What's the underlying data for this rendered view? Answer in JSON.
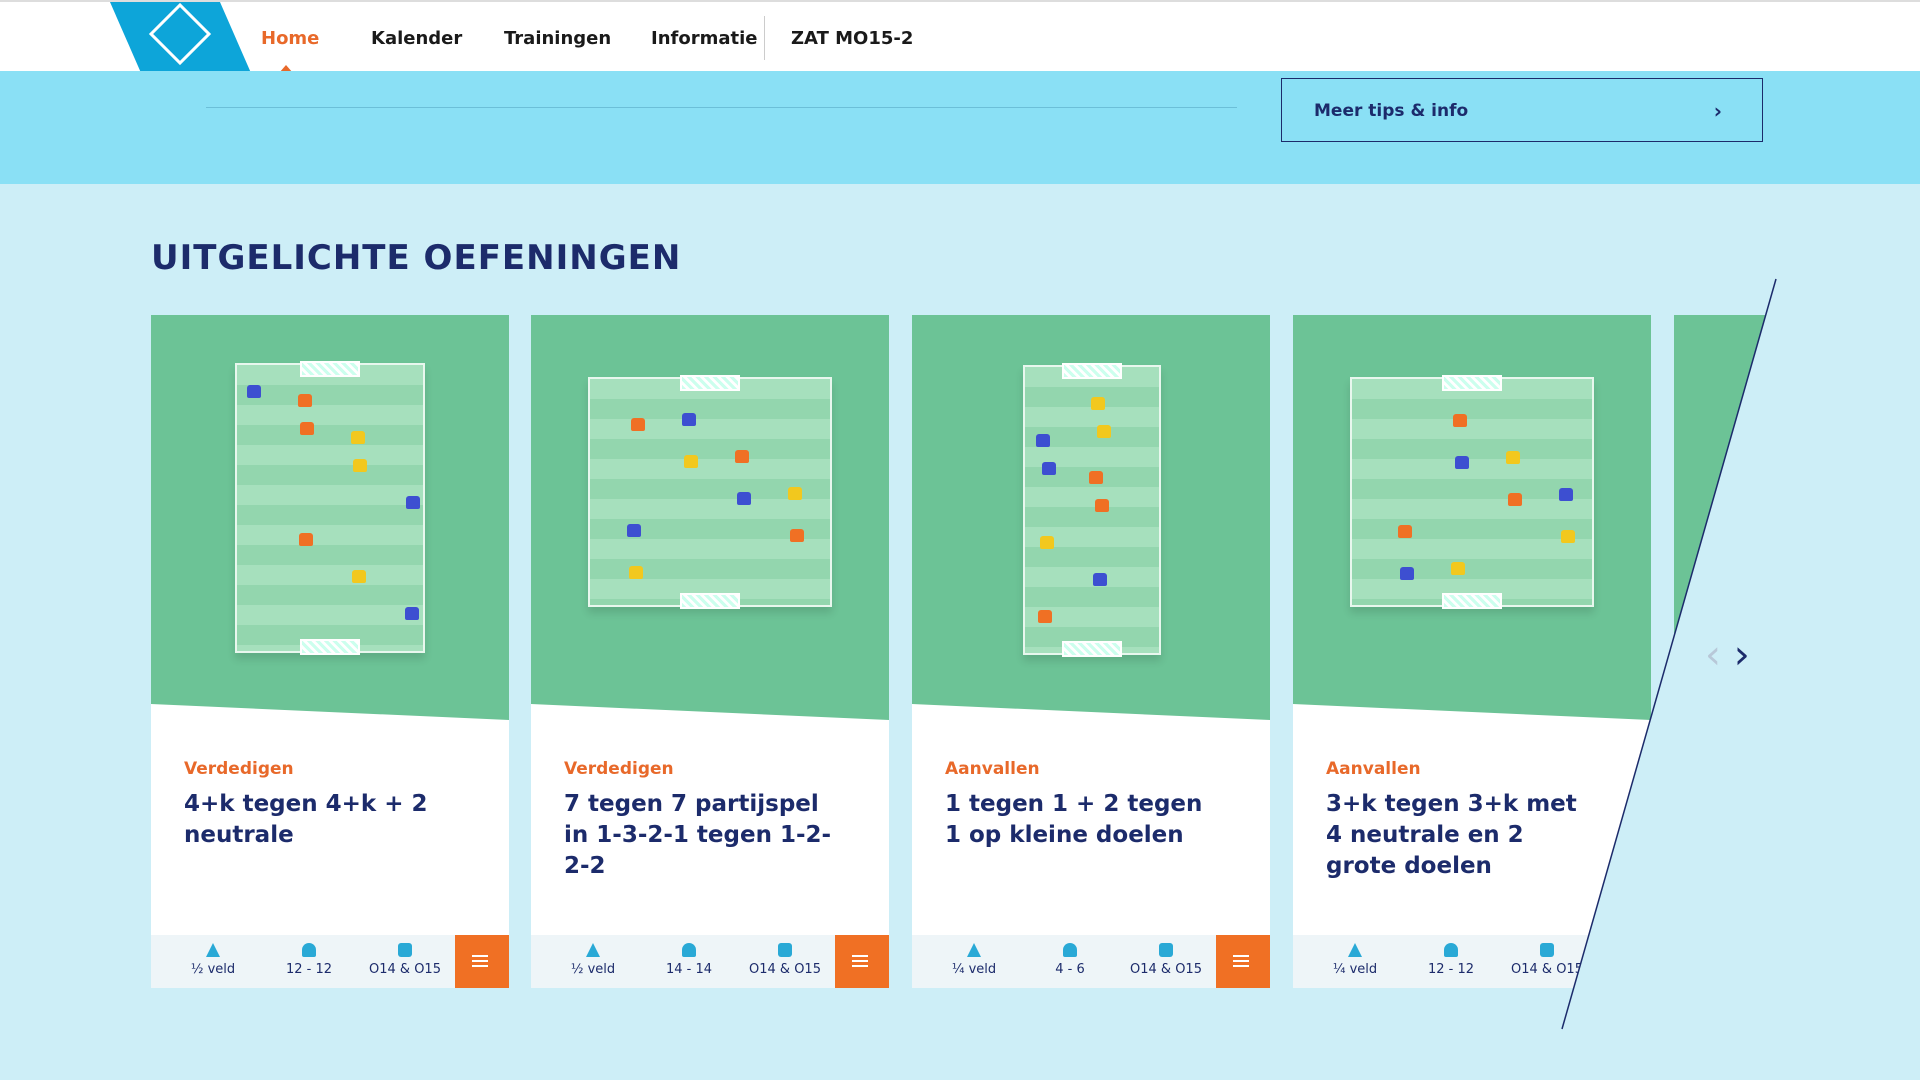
{
  "nav": {
    "items": [
      "Home",
      "Kalender",
      "Trainingen",
      "Informatie"
    ],
    "team": "ZAT MO15-2"
  },
  "banner": {
    "button": "Meer tips & info"
  },
  "section": {
    "title": "UITGELICHTE OEFENINGEN",
    "cards": [
      {
        "category": "Verdedigen",
        "title": "4+k tegen 4+k + 2 neutrale",
        "field": "½ veld",
        "players": "12 - 12",
        "age": "O14 & O15"
      },
      {
        "category": "Verdedigen",
        "title": "7 tegen 7 partijspel in 1-3-2-1 tegen 1-2-2-2",
        "field": "½ veld",
        "players": "14 - 14",
        "age": "O14 & O15"
      },
      {
        "category": "Aanvallen",
        "title": "1 tegen 1 + 2 tegen 1 op kleine doelen",
        "field": "¼ veld",
        "players": "4 - 6",
        "age": "O14 & O15"
      },
      {
        "category": "Aanvallen",
        "title": "3+k tegen 3+k met 4 neutrale en 2 grote doelen",
        "field": "¼ veld",
        "players": "12 - 12",
        "age": "O14 & O15"
      }
    ]
  }
}
